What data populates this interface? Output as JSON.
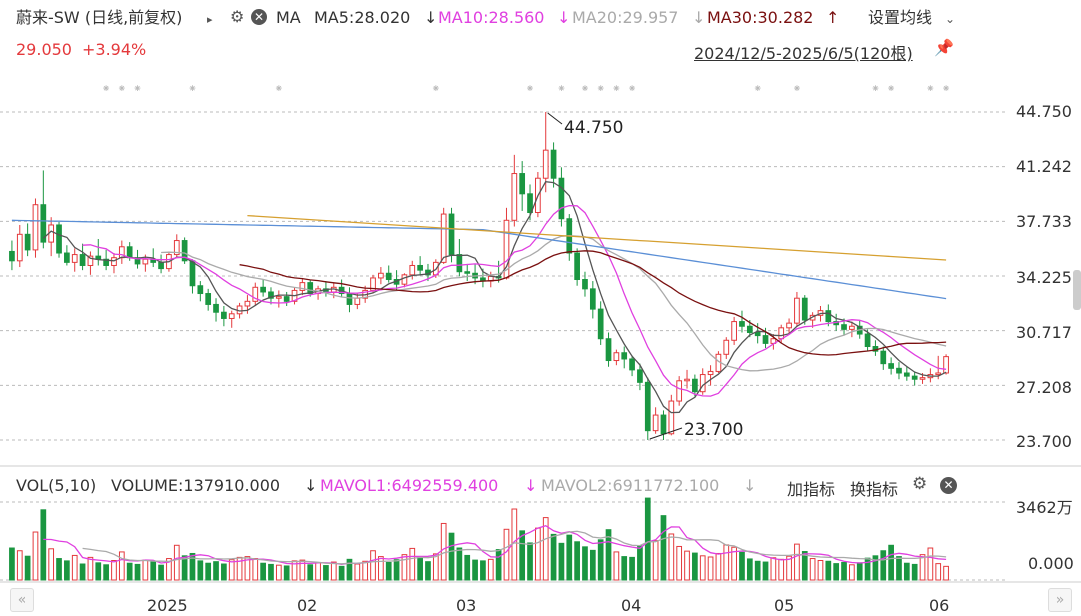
{
  "header": {
    "stock_name": "蔚来-SW (日线,前复权)",
    "expand_icon": "triangle-right-icon",
    "ma_label": "MA",
    "ma5": "MA5:28.020",
    "ma5_arrow": "↓",
    "ma10": "MA10:28.560",
    "ma10_arrow": "↓",
    "ma20": "MA20:29.957",
    "ma20_arrow": "↓",
    "ma30": "MA30:30.282",
    "ma30_arrow": "↑",
    "settings_label": "设置均线",
    "price": "29.050",
    "change": "+3.94%",
    "date_range": "2024/12/5-2025/6/5(120根)"
  },
  "colors": {
    "up": "#e4393c",
    "down": "#1a9641",
    "ma5": "#555555",
    "ma10": "#e040e0",
    "ma20": "#aaaaaa",
    "ma30": "#7a1010",
    "ma60": "#5b8fd6",
    "ma120": "#d6a030",
    "grid": "#bbbbbb"
  },
  "volume_header": {
    "vol_label": "VOL(5,10)",
    "volume": "VOLUME:137910.000",
    "volume_arrow": "↓",
    "mavol1": "MAVOL1:6492559.400",
    "mavol1_arrow": "↓",
    "mavol2": "MAVOL2:6911772.100",
    "mavol2_arrow": "↓",
    "add_indicator": "加指标",
    "switch_indicator": "换指标"
  },
  "chart_data": {
    "type": "candlestick",
    "price_axis": {
      "ticks": [
        "44.750",
        "41.242",
        "37.733",
        "34.225",
        "30.717",
        "27.208",
        "23.700"
      ],
      "range": [
        23.7,
        44.75
      ]
    },
    "volume_axis": {
      "ticks": [
        "3462万",
        "0.000"
      ],
      "range": [
        0,
        34620000
      ]
    },
    "x_ticks": [
      "2025",
      "02",
      "03",
      "04",
      "05",
      "06"
    ],
    "annotations": {
      "high": "44.750",
      "low": "23.700"
    },
    "candles": [
      [
        35.8,
        36.5,
        34.6,
        35.2
      ],
      [
        35.2,
        37.5,
        34.8,
        36.9
      ],
      [
        36.9,
        37.6,
        35.5,
        35.9
      ],
      [
        35.9,
        39.2,
        35.4,
        38.8
      ],
      [
        38.8,
        41.0,
        36.0,
        36.4
      ],
      [
        36.4,
        38.0,
        35.5,
        37.5
      ],
      [
        37.5,
        37.7,
        35.4,
        35.7
      ],
      [
        35.7,
        36.2,
        34.9,
        35.1
      ],
      [
        35.1,
        36.0,
        34.5,
        35.6
      ],
      [
        35.6,
        36.3,
        34.6,
        34.9
      ],
      [
        34.9,
        35.8,
        34.3,
        35.5
      ],
      [
        35.5,
        36.6,
        34.9,
        35.3
      ],
      [
        35.3,
        35.9,
        34.6,
        34.9
      ],
      [
        34.9,
        35.7,
        34.4,
        35.4
      ],
      [
        35.4,
        36.5,
        35.0,
        36.1
      ],
      [
        36.1,
        36.4,
        35.2,
        35.4
      ],
      [
        35.4,
        35.9,
        34.7,
        35.0
      ],
      [
        35.0,
        35.6,
        34.5,
        35.3
      ],
      [
        35.3,
        36.0,
        34.8,
        35.1
      ],
      [
        35.1,
        35.6,
        34.4,
        34.7
      ],
      [
        34.7,
        35.8,
        34.5,
        35.6
      ],
      [
        35.6,
        36.9,
        35.4,
        36.5
      ],
      [
        36.5,
        36.7,
        35.0,
        35.2
      ],
      [
        35.2,
        35.3,
        33.1,
        33.6
      ],
      [
        33.6,
        33.9,
        32.6,
        33.1
      ],
      [
        33.1,
        33.4,
        32.0,
        32.4
      ],
      [
        32.4,
        32.8,
        31.3,
        31.9
      ],
      [
        31.9,
        32.3,
        31.0,
        31.5
      ],
      [
        31.5,
        32.0,
        30.9,
        31.8
      ],
      [
        31.8,
        32.5,
        31.5,
        32.3
      ],
      [
        32.3,
        33.0,
        31.8,
        32.6
      ],
      [
        32.6,
        33.8,
        32.3,
        33.5
      ],
      [
        33.5,
        34.0,
        32.9,
        33.2
      ],
      [
        33.2,
        33.5,
        32.4,
        32.8
      ],
      [
        32.8,
        33.3,
        32.2,
        32.9
      ],
      [
        32.9,
        33.2,
        32.3,
        32.6
      ],
      [
        32.6,
        33.5,
        32.4,
        33.3
      ],
      [
        33.3,
        34.1,
        33.0,
        33.8
      ],
      [
        33.8,
        34.0,
        32.9,
        33.1
      ],
      [
        33.1,
        33.6,
        32.7,
        33.4
      ],
      [
        33.4,
        33.9,
        32.9,
        33.2
      ],
      [
        33.2,
        33.8,
        32.8,
        33.5
      ],
      [
        33.5,
        34.0,
        32.9,
        33.1
      ],
      [
        33.1,
        33.5,
        31.9,
        32.4
      ],
      [
        32.4,
        33.1,
        32.1,
        32.8
      ],
      [
        32.8,
        33.6,
        32.5,
        33.3
      ],
      [
        33.3,
        34.3,
        33.1,
        34.1
      ],
      [
        34.1,
        34.8,
        33.7,
        34.4
      ],
      [
        34.4,
        34.9,
        33.8,
        34.0
      ],
      [
        34.0,
        34.6,
        33.3,
        33.7
      ],
      [
        33.7,
        34.4,
        33.5,
        34.3
      ],
      [
        34.3,
        35.2,
        34.0,
        34.9
      ],
      [
        34.9,
        35.5,
        34.3,
        34.6
      ],
      [
        34.6,
        35.0,
        33.9,
        34.3
      ],
      [
        34.3,
        35.3,
        34.1,
        35.1
      ],
      [
        35.1,
        38.6,
        35.0,
        38.2
      ],
      [
        38.2,
        38.6,
        35.1,
        35.6
      ],
      [
        35.6,
        36.6,
        34.2,
        34.5
      ],
      [
        34.5,
        35.0,
        33.9,
        34.4
      ],
      [
        34.4,
        35.0,
        33.7,
        34.1
      ],
      [
        34.1,
        34.7,
        33.5,
        33.9
      ],
      [
        33.9,
        34.5,
        33.5,
        34.2
      ],
      [
        34.2,
        35.2,
        33.8,
        34.1
      ],
      [
        34.1,
        38.6,
        34.0,
        37.8
      ],
      [
        37.8,
        42.0,
        37.4,
        40.8
      ],
      [
        40.8,
        41.6,
        38.4,
        39.5
      ],
      [
        39.5,
        40.1,
        37.8,
        38.3
      ],
      [
        38.3,
        40.9,
        38.0,
        40.5
      ],
      [
        40.5,
        44.75,
        39.6,
        42.3
      ],
      [
        42.3,
        42.8,
        39.9,
        40.5
      ],
      [
        40.5,
        41.2,
        37.4,
        37.9
      ],
      [
        37.9,
        38.2,
        35.2,
        35.7
      ],
      [
        35.7,
        36.0,
        33.6,
        34.0
      ],
      [
        34.0,
        34.5,
        32.9,
        33.4
      ],
      [
        33.4,
        33.9,
        31.5,
        32.1
      ],
      [
        32.1,
        32.6,
        29.8,
        30.2
      ],
      [
        30.2,
        30.6,
        28.4,
        28.8
      ],
      [
        28.8,
        29.5,
        28.5,
        29.3
      ],
      [
        29.3,
        29.7,
        28.3,
        28.9
      ],
      [
        28.9,
        29.1,
        27.8,
        28.2
      ],
      [
        28.2,
        28.6,
        26.9,
        27.4
      ],
      [
        27.4,
        27.7,
        23.7,
        24.3
      ],
      [
        24.3,
        25.8,
        24.1,
        25.3
      ],
      [
        25.3,
        25.6,
        23.7,
        24.1
      ],
      [
        24.1,
        26.6,
        24.0,
        26.2
      ],
      [
        26.2,
        27.8,
        25.9,
        27.5
      ],
      [
        27.5,
        28.2,
        27.0,
        27.6
      ],
      [
        27.6,
        27.9,
        26.5,
        26.8
      ],
      [
        26.8,
        28.3,
        26.6,
        27.9
      ],
      [
        27.9,
        28.5,
        27.2,
        28.1
      ],
      [
        28.1,
        29.4,
        28.0,
        29.2
      ],
      [
        29.2,
        30.3,
        28.9,
        30.1
      ],
      [
        30.1,
        31.6,
        29.8,
        31.3
      ],
      [
        31.3,
        32.0,
        30.6,
        31.0
      ],
      [
        31.0,
        31.4,
        30.3,
        30.6
      ],
      [
        30.6,
        31.2,
        29.9,
        30.4
      ],
      [
        30.4,
        30.9,
        29.6,
        29.9
      ],
      [
        29.9,
        30.5,
        29.5,
        30.2
      ],
      [
        30.2,
        31.1,
        29.9,
        30.9
      ],
      [
        30.9,
        31.5,
        30.5,
        31.2
      ],
      [
        31.2,
        33.2,
        31.0,
        32.8
      ],
      [
        32.8,
        33.0,
        31.1,
        31.4
      ],
      [
        31.4,
        31.9,
        30.9,
        31.7
      ],
      [
        31.7,
        32.3,
        31.3,
        32.0
      ],
      [
        32.0,
        32.4,
        31.0,
        31.3
      ],
      [
        31.3,
        31.8,
        30.7,
        31.1
      ],
      [
        31.1,
        31.5,
        30.4,
        30.8
      ],
      [
        30.8,
        31.3,
        30.3,
        31.0
      ],
      [
        31.0,
        31.4,
        30.2,
        30.5
      ],
      [
        30.5,
        30.8,
        29.4,
        29.7
      ],
      [
        29.7,
        30.1,
        29.1,
        29.4
      ],
      [
        29.4,
        29.7,
        28.2,
        28.6
      ],
      [
        28.6,
        29.0,
        27.9,
        28.3
      ],
      [
        28.3,
        28.7,
        27.6,
        28.0
      ],
      [
        28.0,
        28.4,
        27.5,
        27.8
      ],
      [
        27.8,
        28.1,
        27.2,
        27.6
      ],
      [
        27.6,
        28.0,
        27.3,
        27.7
      ],
      [
        27.7,
        28.3,
        27.4,
        27.9
      ],
      [
        27.9,
        29.1,
        27.6,
        28.0
      ],
      [
        28.0,
        29.2,
        27.9,
        29.05
      ]
    ],
    "volumes": [
      8.2,
      7.5,
      6.1,
      12.3,
      18.0,
      8.0,
      5.5,
      4.9,
      6.3,
      4.1,
      5.8,
      4.4,
      3.9,
      5.0,
      7.2,
      4.3,
      4.0,
      5.1,
      4.6,
      3.8,
      5.5,
      8.9,
      6.2,
      6.8,
      4.9,
      4.3,
      4.7,
      4.1,
      5.2,
      5.8,
      6.0,
      5.5,
      4.3,
      4.0,
      3.8,
      3.6,
      4.9,
      5.1,
      3.9,
      4.4,
      3.7,
      4.6,
      3.5,
      5.3,
      4.1,
      4.8,
      7.5,
      6.0,
      4.5,
      5.2,
      6.5,
      8.1,
      5.9,
      4.7,
      6.7,
      14.5,
      12.0,
      8.2,
      6.3,
      5.1,
      4.9,
      5.3,
      7.8,
      13.0,
      18.2,
      12.6,
      9.5,
      13.3,
      16.0,
      11.7,
      9.4,
      11.5,
      9.8,
      8.5,
      7.6,
      10.3,
      12.9,
      7.2,
      6.0,
      5.8,
      8.7,
      21.0,
      10.1,
      16.5,
      11.8,
      8.6,
      7.4,
      6.9,
      6.2,
      5.9,
      6.8,
      9.0,
      8.4,
      7.1,
      5.4,
      4.8,
      4.6,
      5.7,
      5.3,
      6.1,
      9.2,
      7.3,
      5.5,
      5.0,
      4.8,
      4.2,
      4.5,
      3.9,
      4.4,
      5.6,
      6.2,
      7.5,
      8.9,
      6.0,
      4.3,
      4.0,
      6.5,
      8.2,
      4.2,
      3.5
    ],
    "ma_series": [
      "MA5",
      "MA10",
      "MA20",
      "MA30",
      "MA60",
      "MA120"
    ],
    "mavol_series": [
      "MAVOL1",
      "MAVOL2"
    ]
  }
}
